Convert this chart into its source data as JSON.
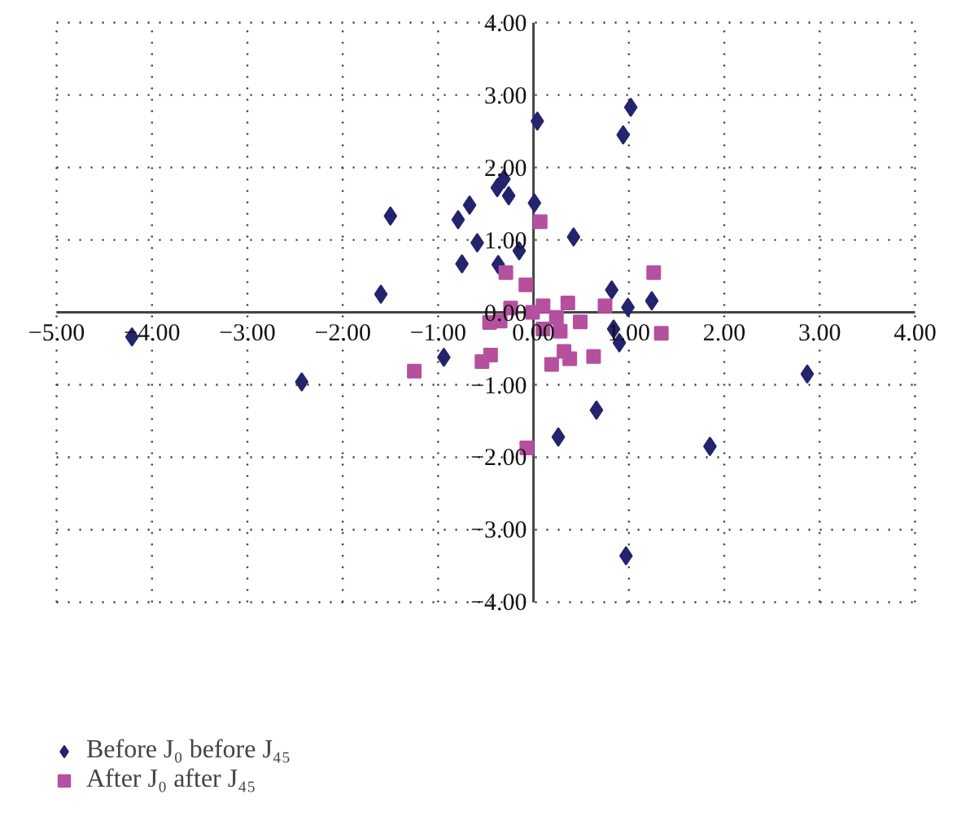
{
  "chart_data": {
    "type": "scatter",
    "xlim": [
      -5,
      4
    ],
    "ylim": [
      -4,
      4
    ],
    "xticks": [
      {
        "value": -5,
        "label": "−5.00"
      },
      {
        "value": -4,
        "label": "−4.00"
      },
      {
        "value": -3,
        "label": "−3.00"
      },
      {
        "value": -2,
        "label": "−2.00"
      },
      {
        "value": -1,
        "label": "−1.00"
      },
      {
        "value": 0,
        "label": "0.00"
      },
      {
        "value": 1,
        "label": "1.00"
      },
      {
        "value": 2,
        "label": "2.00"
      },
      {
        "value": 3,
        "label": "3.00"
      },
      {
        "value": 4,
        "label": "4.00"
      }
    ],
    "yticks": [
      {
        "value": -4,
        "label": "−4.00"
      },
      {
        "value": -3,
        "label": "−3.00"
      },
      {
        "value": -2,
        "label": "−2.00"
      },
      {
        "value": -1,
        "label": "−1.00"
      },
      {
        "value": 0,
        "label": "0.00"
      },
      {
        "value": 1,
        "label": "1.00"
      },
      {
        "value": 2,
        "label": "2.00"
      },
      {
        "value": 3,
        "label": "3.00"
      },
      {
        "value": 4,
        "label": "4.00"
      }
    ],
    "grid": true,
    "line_style": "dotted",
    "legend": "bottom left",
    "series": [
      {
        "name": "Before J₀ before J₄₅",
        "color": "#24246e",
        "marker": "diamond",
        "x": [
          -4.21,
          -2.43,
          -1.5,
          -1.6,
          -0.79,
          -0.67,
          -0.75,
          -0.59,
          -0.38,
          -0.31,
          -0.26,
          -0.37,
          -0.15,
          0.04,
          0.01,
          0.42,
          0.94,
          1.02,
          0.82,
          0.99,
          1.24,
          0.84,
          0.9,
          -0.94,
          0.66,
          0.26,
          0.97,
          1.85,
          2.87
        ],
        "values": [
          -0.34,
          -0.96,
          1.33,
          0.25,
          1.28,
          1.48,
          0.67,
          0.96,
          1.72,
          1.84,
          1.61,
          0.66,
          0.85,
          2.64,
          1.51,
          1.04,
          2.45,
          2.83,
          0.31,
          0.07,
          0.16,
          -0.23,
          -0.42,
          -0.62,
          -1.35,
          -1.72,
          -3.36,
          -1.85,
          -0.85
        ]
      },
      {
        "name": "After J₀ after J₄₅",
        "color": "#b5509f",
        "marker": "square",
        "x": [
          0.07,
          -0.29,
          -0.08,
          1.26,
          0.1,
          0.36,
          0.75,
          -0.24,
          -0.01,
          0.24,
          0.1,
          0.28,
          0.49,
          -0.46,
          -0.35,
          1.34,
          0.32,
          -0.45,
          -0.54,
          0.19,
          0.38,
          0.63,
          -1.25,
          -0.07
        ],
        "values": [
          1.25,
          0.55,
          0.38,
          0.55,
          0.09,
          0.13,
          0.09,
          0.06,
          0.0,
          -0.07,
          -0.23,
          -0.26,
          -0.13,
          -0.14,
          -0.12,
          -0.29,
          -0.54,
          -0.59,
          -0.68,
          -0.72,
          -0.64,
          -0.61,
          -0.81,
          -1.87
        ]
      }
    ]
  }
}
